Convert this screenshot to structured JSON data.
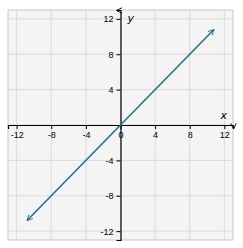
{
  "chart_data": {
    "type": "line",
    "x": [
      -10.8,
      10.8
    ],
    "values": [
      -10.8,
      10.8
    ],
    "color": "#2e6b8a",
    "xlabel": "x",
    "ylabel": "y",
    "xlim": [
      -13,
      13
    ],
    "ylim": [
      -13,
      13
    ],
    "xticks": [
      -12,
      -8,
      -4,
      0,
      4,
      8,
      12
    ],
    "yticks": [
      -12,
      -8,
      -4,
      {
        "value": 0,
        "label": null
      },
      4,
      8,
      12
    ],
    "grid": true
  }
}
